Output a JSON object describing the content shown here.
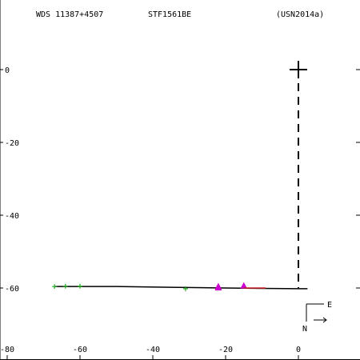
{
  "header": {
    "wds": "WDS 11387+4507",
    "discoverer": "STF1561BE",
    "reference": "(USN2014a)"
  },
  "chart_data": {
    "type": "scatter",
    "title": "",
    "xlabel": "",
    "ylabel": "",
    "xlim": [
      -80,
      16
    ],
    "ylim": [
      -75,
      17
    ],
    "x_ticks": [
      -80,
      -60,
      -40,
      -20,
      0
    ],
    "y_ticks": [
      0,
      -20,
      -40,
      -60
    ],
    "x_tick_labels": [
      "-80",
      "-60",
      "-40",
      "-20",
      "0"
    ],
    "y_tick_labels": [
      "0",
      "-20",
      "-40",
      "-60"
    ],
    "primary": {
      "x": 0,
      "y": 0,
      "marker": "large-plus",
      "color": "#000000"
    },
    "predicted_line": {
      "style": "dashed",
      "color": "#000000",
      "points": [
        [
          0,
          0
        ],
        [
          0,
          -60
        ]
      ]
    },
    "orbit_curve": {
      "style": "solid",
      "color": "#000000",
      "points": [
        [
          -67,
          -59.6
        ],
        [
          -50,
          -59.6
        ],
        [
          -35,
          -59.8
        ],
        [
          -20,
          -60.0
        ],
        [
          -10,
          -60.1
        ],
        [
          0,
          -60.2
        ],
        [
          2.5,
          -60.2
        ]
      ]
    },
    "series": [
      {
        "marker": "plus",
        "color": "#22aa22",
        "points": [
          [
            -67,
            -59.6
          ],
          [
            -64,
            -59.5
          ],
          [
            -60,
            -59.5
          ],
          [
            -31,
            -60.2
          ]
        ]
      },
      {
        "marker": "triangle",
        "color": "#cc00cc",
        "points": [
          [
            -22,
            -59.7
          ],
          [
            -22,
            -60.0
          ],
          [
            -15,
            -59.5
          ]
        ]
      },
      {
        "marker": "segment",
        "color": "#cc2222",
        "points": [
          [
            -15,
            -60.0
          ],
          [
            -9,
            -60.0
          ]
        ]
      }
    ],
    "compass": {
      "east": "E",
      "north": "N"
    }
  }
}
